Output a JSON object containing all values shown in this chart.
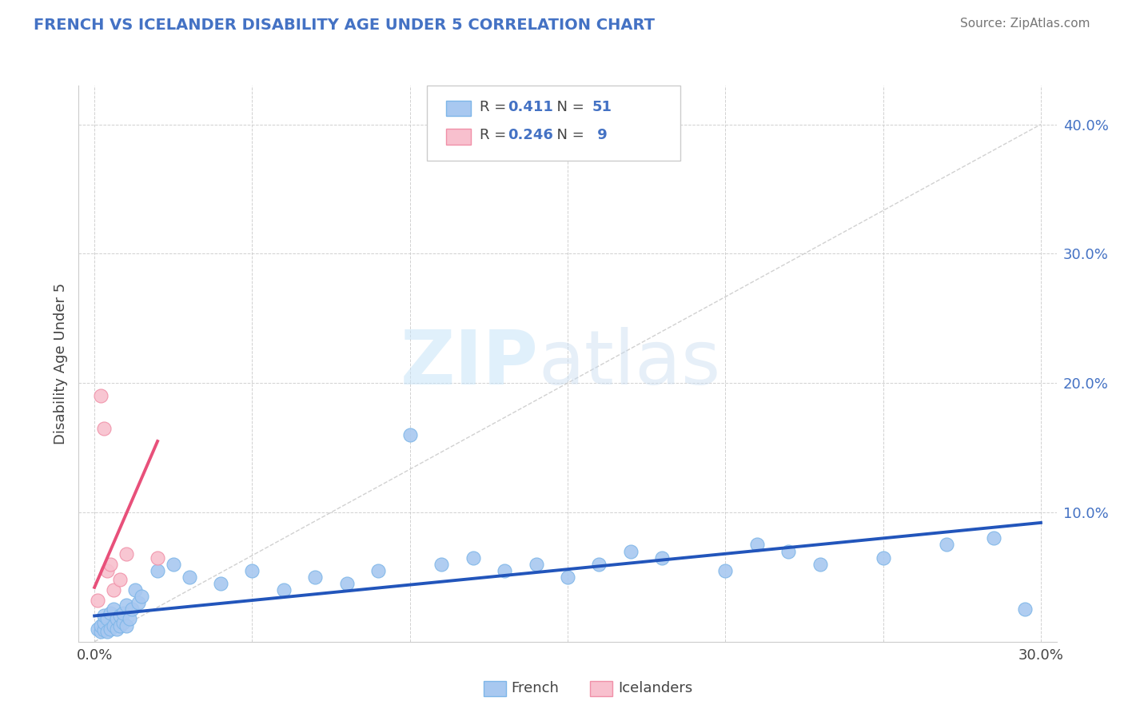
{
  "title": "FRENCH VS ICELANDER DISABILITY AGE UNDER 5 CORRELATION CHART",
  "source": "Source: ZipAtlas.com",
  "ylabel": "Disability Age Under 5",
  "xlim": [
    -0.005,
    0.305
  ],
  "ylim": [
    0.0,
    0.43
  ],
  "french_R": 0.411,
  "french_N": 51,
  "icelander_R": 0.246,
  "icelander_N": 9,
  "french_color": "#A8C8F0",
  "french_edge_color": "#7EB6E8",
  "icelander_color": "#F8C0CE",
  "icelander_edge_color": "#F090A8",
  "french_line_color": "#2255BB",
  "icelander_line_color": "#E8507A",
  "ref_line_color": "#CCCCCC",
  "title_color": "#4472C4",
  "accent_color": "#4472C4",
  "watermark_zip": "ZIP",
  "watermark_atlas": "atlas",
  "background_color": "#FFFFFF",
  "french_x": [
    0.001,
    0.002,
    0.002,
    0.003,
    0.003,
    0.003,
    0.004,
    0.004,
    0.005,
    0.005,
    0.006,
    0.006,
    0.007,
    0.007,
    0.008,
    0.008,
    0.009,
    0.009,
    0.01,
    0.01,
    0.011,
    0.012,
    0.013,
    0.014,
    0.015,
    0.02,
    0.025,
    0.03,
    0.04,
    0.05,
    0.06,
    0.07,
    0.08,
    0.09,
    0.1,
    0.11,
    0.12,
    0.13,
    0.14,
    0.15,
    0.16,
    0.17,
    0.18,
    0.2,
    0.21,
    0.22,
    0.23,
    0.25,
    0.27,
    0.285,
    0.295
  ],
  "french_y": [
    0.01,
    0.008,
    0.012,
    0.009,
    0.015,
    0.02,
    0.008,
    0.018,
    0.01,
    0.022,
    0.012,
    0.025,
    0.01,
    0.018,
    0.012,
    0.02,
    0.015,
    0.022,
    0.012,
    0.028,
    0.018,
    0.025,
    0.04,
    0.03,
    0.035,
    0.055,
    0.06,
    0.05,
    0.045,
    0.055,
    0.04,
    0.05,
    0.045,
    0.055,
    0.16,
    0.06,
    0.065,
    0.055,
    0.06,
    0.05,
    0.06,
    0.07,
    0.065,
    0.055,
    0.075,
    0.07,
    0.06,
    0.065,
    0.075,
    0.08,
    0.025
  ],
  "icelander_x": [
    0.001,
    0.002,
    0.003,
    0.004,
    0.005,
    0.006,
    0.008,
    0.01,
    0.02
  ],
  "icelander_y": [
    0.032,
    0.19,
    0.165,
    0.055,
    0.06,
    0.04,
    0.048,
    0.068,
    0.065
  ],
  "french_trend_x0": 0.0,
  "french_trend_x1": 0.3,
  "french_trend_y0": 0.02,
  "french_trend_y1": 0.092,
  "icelander_trend_x0": 0.0,
  "icelander_trend_x1": 0.02,
  "icelander_trend_y0": 0.042,
  "icelander_trend_y1": 0.155
}
